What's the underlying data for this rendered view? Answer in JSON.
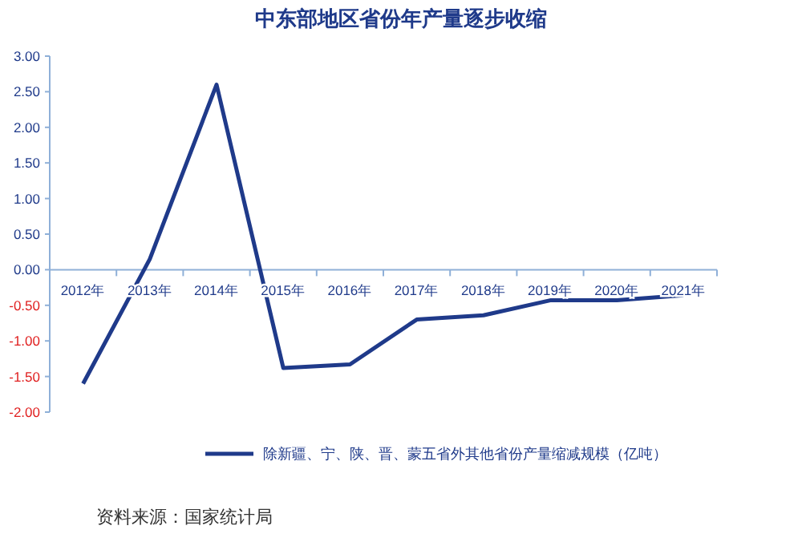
{
  "chart_data": {
    "type": "line",
    "title": "中东部地区省份年产量逐步收缩",
    "categories": [
      "2012年",
      "2013年",
      "2014年",
      "2015年",
      "2016年",
      "2017年",
      "2018年",
      "2019年",
      "2020年",
      "2021年"
    ],
    "series": [
      {
        "name": "除新疆、宁、陕、晋、蒙五省外其他省份产量缩减规模（亿吨）",
        "color": "#1f3a8a",
        "values": [
          -1.6,
          0.15,
          2.6,
          -1.38,
          -1.33,
          -0.7,
          -0.64,
          -0.43,
          -0.43,
          -0.36
        ]
      }
    ],
    "ylim": [
      -2,
      3
    ],
    "yticks": [
      {
        "value": -2,
        "label": "-2.00"
      },
      {
        "value": -1.5,
        "label": "-1.50"
      },
      {
        "value": -1,
        "label": "-1.00"
      },
      {
        "value": -0.5,
        "label": "-0.50"
      },
      {
        "value": 0,
        "label": "0.00"
      },
      {
        "value": 0.5,
        "label": "0.50"
      },
      {
        "value": 1,
        "label": "1.00"
      },
      {
        "value": 1.5,
        "label": "1.50"
      },
      {
        "value": 2,
        "label": "2.00"
      },
      {
        "value": 2.5,
        "label": "2.50"
      },
      {
        "value": 3,
        "label": "3.00"
      }
    ],
    "grid": false,
    "legend": "bottom",
    "marker": "none",
    "line_style": "solid",
    "annotations": [
      "资料来源：国家统计局"
    ]
  }
}
